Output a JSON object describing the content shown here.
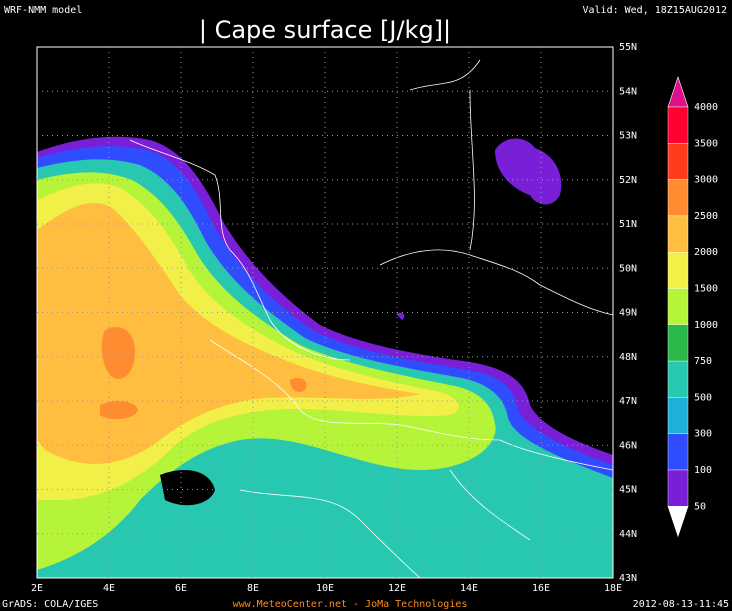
{
  "header": {
    "model": "WRF-NMM model",
    "valid": "Valid: Wed, 18Z15AUG2012",
    "title": "| Cape surface [J/kg]|"
  },
  "map": {
    "lon_labels": [
      "2E",
      "4E",
      "6E",
      "8E",
      "10E",
      "12E",
      "14E",
      "16E",
      "18E"
    ],
    "lat_labels": [
      "55N",
      "54N",
      "53N",
      "52N",
      "51N",
      "50N",
      "49N",
      "48N",
      "47N",
      "46N",
      "45N",
      "44N",
      "43N"
    ]
  },
  "colorbar": {
    "levels": [
      "4000",
      "3500",
      "3000",
      "2500",
      "2000",
      "1500",
      "1000",
      "750",
      "500",
      "300",
      "100",
      "50"
    ],
    "colors": [
      "#e0108a",
      "#ff0030",
      "#ff3c1e",
      "#ff8c30",
      "#ffbe40",
      "#f2ef48",
      "#b6f43a",
      "#2ab84a",
      "#28c8b0",
      "#1fb0d8",
      "#2f4cff",
      "#7a1fd8",
      "#ffffff"
    ]
  },
  "footer": {
    "left": "GrADS: COLA/IGES",
    "center": "www.MeteoCenter.net  -  JoMa Technologies",
    "right": "2012-08-13-11:45"
  }
}
